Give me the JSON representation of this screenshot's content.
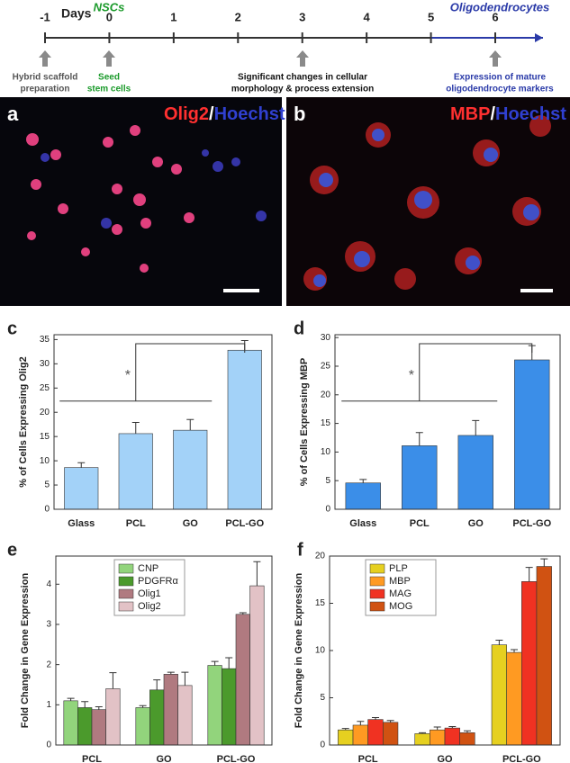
{
  "timeline": {
    "unit": "Days",
    "days": [
      -1,
      0,
      1,
      2,
      3,
      4,
      5,
      6
    ],
    "stages": [
      "NSCs",
      "Oligodendrocytes"
    ],
    "events": [
      [
        "Hybrid scaffold",
        "preparation"
      ],
      [
        "Seed",
        "stem cells"
      ],
      [
        "Significant changes in cellular",
        "morphology & process extension"
      ],
      [
        "Expression of mature",
        "oligodendrocyte markers"
      ]
    ]
  },
  "images": [
    {
      "panel": "a",
      "stain": [
        "Olig2",
        "/",
        "Hoechst"
      ]
    },
    {
      "panel": "b",
      "stain": [
        "MBP",
        "/",
        "Hoechst"
      ]
    }
  ],
  "chart_data": [
    {
      "type": "bar",
      "panel": "c",
      "ylabel": "% of Cells Expressing Olig2",
      "annotation": "*",
      "categories": [
        "Glass",
        "PCL",
        "GO",
        "PCL-GO"
      ],
      "values": [
        8.6,
        15.6,
        16.3,
        32.8
      ],
      "errors": [
        1.0,
        2.3,
        2.2,
        2.0
      ],
      "color": "#a3d2f8",
      "ylim": [
        0,
        36
      ],
      "yticks": [
        0,
        5,
        10,
        15,
        20,
        25,
        30,
        35
      ]
    },
    {
      "type": "bar",
      "panel": "d",
      "ylabel": "% of Cells Expressing MBP",
      "annotation": "*",
      "categories": [
        "Glass",
        "PCL",
        "GO",
        "PCL-GO"
      ],
      "values": [
        4.6,
        11.1,
        12.9,
        26.1
      ],
      "errors": [
        0.6,
        2.3,
        2.6,
        2.5
      ],
      "color": "#3b8ee8",
      "ylim": [
        0,
        30.5
      ],
      "yticks": [
        0,
        5,
        10,
        15,
        20,
        25,
        30
      ]
    },
    {
      "type": "bar",
      "panel": "e",
      "ylabel": "Fold Change in Gene Expression",
      "legend": "upper center",
      "categories": [
        "PCL",
        "GO",
        "PCL-GO"
      ],
      "ylim": [
        0,
        4.7
      ],
      "yticks": [
        0,
        1,
        2,
        3,
        4
      ],
      "series": [
        {
          "name": "CNP",
          "color": "#92d47c",
          "values": [
            1.1,
            0.93,
            1.98
          ],
          "errors": [
            0.06,
            0.05,
            0.1
          ]
        },
        {
          "name": "PDGFRα",
          "color": "#4b9a2c",
          "values": [
            0.93,
            1.37,
            1.9
          ],
          "errors": [
            0.15,
            0.25,
            0.27
          ]
        },
        {
          "name": "Olig1",
          "color": "#b07a80",
          "values": [
            0.88,
            1.76,
            3.25
          ],
          "errors": [
            0.07,
            0.05,
            0.04
          ]
        },
        {
          "name": "Olig2",
          "color": "#e2c2c6",
          "values": [
            1.4,
            1.48,
            3.96
          ],
          "errors": [
            0.4,
            0.33,
            0.6
          ]
        }
      ]
    },
    {
      "type": "bar",
      "panel": "f",
      "ylabel": "Fold Change in Gene Expression",
      "legend": "upper left",
      "categories": [
        "PCL",
        "GO",
        "PCL-GO"
      ],
      "ylim": [
        0,
        20
      ],
      "yticks": [
        0,
        5,
        10,
        15,
        20
      ],
      "series": [
        {
          "name": "PLP",
          "color": "#e6d020",
          "values": [
            1.6,
            1.2,
            10.6
          ],
          "errors": [
            0.15,
            0.1,
            0.5
          ]
        },
        {
          "name": "MBP",
          "color": "#ff9a22",
          "values": [
            2.1,
            1.6,
            9.8
          ],
          "errors": [
            0.4,
            0.3,
            0.3
          ]
        },
        {
          "name": "MAG",
          "color": "#f03222",
          "values": [
            2.7,
            1.8,
            17.3
          ],
          "errors": [
            0.2,
            0.15,
            1.5
          ]
        },
        {
          "name": "MOG",
          "color": "#d05212",
          "values": [
            2.4,
            1.3,
            18.9
          ],
          "errors": [
            0.2,
            0.2,
            0.8
          ]
        }
      ]
    }
  ]
}
